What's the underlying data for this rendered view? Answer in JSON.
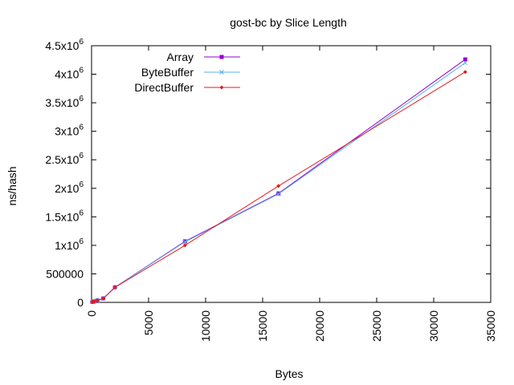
{
  "chart_data": {
    "type": "line",
    "title": "gost-bc by Slice Length",
    "xlabel": "Bytes",
    "ylabel": "ns/hash",
    "xlim": [
      0,
      35000
    ],
    "ylim": [
      0,
      4500000
    ],
    "x_ticks": [
      0,
      5000,
      10000,
      15000,
      20000,
      25000,
      30000,
      35000
    ],
    "x_tick_labels": [
      "0",
      "5000",
      "10000",
      "15000",
      "20000",
      "25000",
      "30000",
      "35000"
    ],
    "y_ticks": [
      0,
      500000,
      1000000,
      1500000,
      2000000,
      2500000,
      3000000,
      3500000,
      4000000,
      4500000
    ],
    "y_tick_labels": [
      {
        "mant": "0",
        "exp": ""
      },
      {
        "mant": "500000",
        "exp": ""
      },
      {
        "mant": "1x10",
        "exp": "6"
      },
      {
        "mant": "1.5x10",
        "exp": "6"
      },
      {
        "mant": "2x10",
        "exp": "6"
      },
      {
        "mant": "2.5x10",
        "exp": "6"
      },
      {
        "mant": "3x10",
        "exp": "6"
      },
      {
        "mant": "3.5x10",
        "exp": "6"
      },
      {
        "mant": "4x10",
        "exp": "6"
      },
      {
        "mant": "4.5x10",
        "exp": "6"
      }
    ],
    "grid": false,
    "legend_position": "top-left",
    "x": [
      64,
      128,
      256,
      512,
      1024,
      2048,
      8192,
      16384,
      32768
    ],
    "series": [
      {
        "name": "Array",
        "color": "#9400d3",
        "marker": "square",
        "values": [
          8000,
          12000,
          18000,
          35000,
          70000,
          265000,
          1070000,
          1910000,
          4260000
        ]
      },
      {
        "name": "ByteBuffer",
        "color": "#56b4e9",
        "marker": "x",
        "values": [
          8000,
          12000,
          18000,
          35000,
          68000,
          262000,
          1060000,
          1900000,
          4200000
        ]
      },
      {
        "name": "DirectBuffer",
        "color": "#e41a1c",
        "marker": "diamond",
        "values": [
          8000,
          12000,
          18000,
          34000,
          66000,
          262000,
          1000000,
          2040000,
          4040000
        ]
      }
    ]
  }
}
